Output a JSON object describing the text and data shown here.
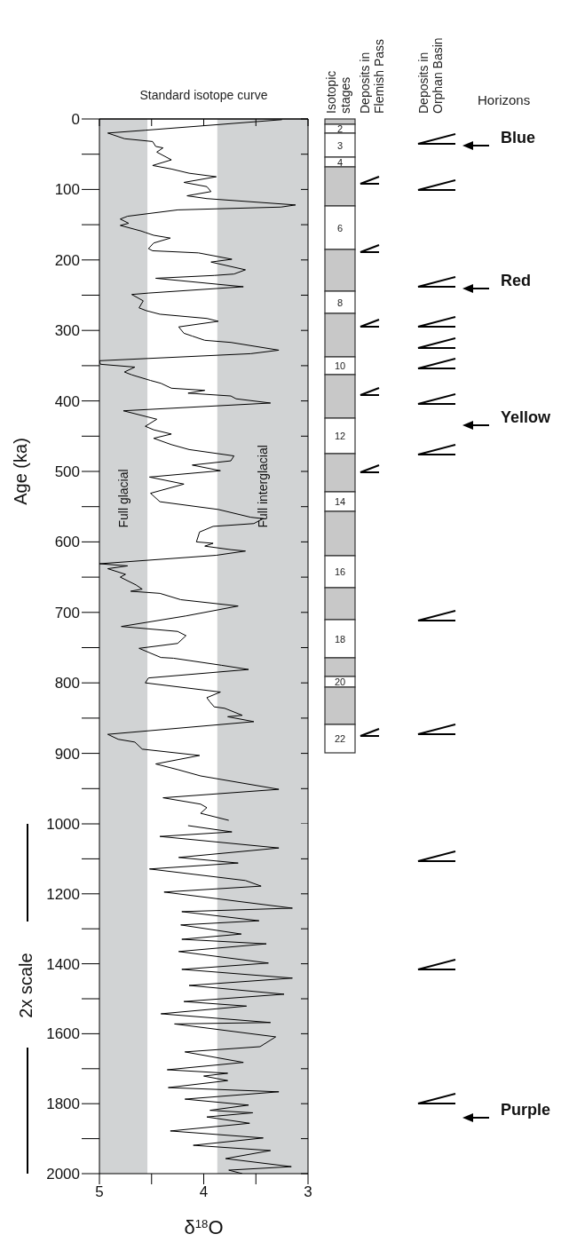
{
  "chart_data": [
    {
      "type": "line",
      "title": "Standard isotope curve",
      "ylabel": "Age (ka)",
      "xlim": [
        5,
        3
      ],
      "ylim": [
        1000,
        0
      ],
      "xticks": [
        {
          "value": 5,
          "label": null
        },
        {
          "value": 4.5,
          "label": null
        },
        {
          "value": 4,
          "label": null
        },
        {
          "value": 3.5,
          "label": null
        },
        {
          "value": 3,
          "label": null
        }
      ],
      "yticks": [
        0,
        {
          "value": 50,
          "label": null
        },
        100,
        {
          "value": 150,
          "label": null
        },
        200,
        {
          "value": 250,
          "label": null
        },
        300,
        {
          "value": 350,
          "label": null
        },
        400,
        {
          "value": 450,
          "label": null
        },
        500,
        {
          "value": 550,
          "label": null
        },
        600,
        {
          "value": 650,
          "label": null
        },
        700,
        {
          "value": 750,
          "label": null
        },
        800,
        {
          "value": 850,
          "label": null
        },
        900,
        {
          "value": 950,
          "label": null
        },
        1000
      ],
      "tick_labels": "y",
      "series": [
        {
          "type": "line",
          "color": "#000000",
          "x": [
            3.25,
            4.56,
            4.92,
            4.76,
            4.49,
            4.46,
            4.39,
            4.45,
            4.31,
            4.49,
            4.31,
            4.14,
            3.88,
            4.19,
            3.97,
            3.93,
            4.16,
            3.97,
            3.12,
            3.26,
            4.25,
            4.73,
            4.8,
            4.72,
            4.8,
            4.6,
            4.56,
            4.48,
            4.32,
            4.48,
            4.53,
            4.49,
            4.05,
            3.73,
            3.93,
            3.6,
            3.71,
            3.9,
            4.46,
            3.62,
            4.53,
            4.69,
            4.58,
            4.62,
            4.55,
            4.42,
            3.97,
            3.86,
            4.24,
            4.19,
            4.11,
            3.99,
            3.74,
            3.28,
            3.55,
            5.0,
            4.99,
            4.66,
            4.76,
            4.69,
            4.51,
            4.41,
            4.31,
            3.99,
            4.15,
            3.74,
            3.69,
            3.36,
            4.77,
            4.45,
            4.56,
            4.48,
            4.31,
            4.48,
            4.31,
            4.14,
            3.71,
            3.74,
            4.11,
            3.84,
            4.52,
            4.19,
            4.51,
            4.42,
            3.86,
            3.55,
            3.43,
            3.52,
            3.91,
            4.04,
            4.07,
            3.91,
            3.99,
            3.74,
            3.6,
            3.88,
            5.0,
            4.73,
            4.92,
            4.75,
            4.8,
            4.65,
            4.59,
            4.7,
            4.42,
            4.22,
            3.67,
            4.17,
            4.79,
            4.25,
            4.17,
            4.25,
            4.62,
            4.41,
            4.29,
            3.83,
            3.57,
            4.53,
            4.56,
            3.84,
            3.97,
            3.94,
            3.9,
            3.8,
            3.63,
            3.77,
            3.52,
            4.92,
            4.82,
            4.66,
            4.59,
            4.04,
            4.46,
            4.25,
            4.03,
            3.28,
            4.39,
            4.03,
            3.97,
            4.03,
            3.76
          ],
          "values": [
            1,
            16,
            20,
            28,
            32,
            39,
            41,
            47,
            58,
            66,
            71,
            77,
            82,
            90,
            96,
            103,
            109,
            113,
            122,
            125,
            129,
            138,
            142,
            148,
            151,
            159,
            161,
            165,
            169,
            176,
            184,
            187,
            190,
            199,
            203,
            214,
            220,
            222,
            226,
            238,
            247,
            249,
            258,
            268,
            272,
            277,
            283,
            287,
            295,
            304,
            308,
            314,
            317,
            328,
            333,
            343,
            348,
            352,
            359,
            363,
            371,
            375,
            382,
            385,
            389,
            393,
            397,
            403,
            414,
            426,
            436,
            441,
            447,
            453,
            462,
            469,
            478,
            485,
            491,
            499,
            508,
            518,
            531,
            543,
            554,
            565,
            567,
            574,
            578,
            586,
            600,
            602,
            606,
            611,
            613,
            619,
            631,
            634,
            638,
            646,
            650,
            661,
            667,
            670,
            673,
            682,
            691,
            705,
            720,
            727,
            733,
            744,
            751,
            764,
            765,
            775,
            781,
            793,
            800,
            813,
            821,
            827,
            834,
            836,
            846,
            848,
            855,
            873,
            880,
            884,
            894,
            903,
            915,
            923,
            932,
            951,
            963,
            972,
            977,
            985,
            995
          ]
        }
      ],
      "bands": [
        {
          "axis": "x",
          "from": 5,
          "to": 4.54,
          "label": "Full glacial",
          "color": "#d1d3d4"
        },
        {
          "axis": "x",
          "from": 3.87,
          "to": 3,
          "label": "Full interglacial",
          "color": "#d1d3d4"
        }
      ],
      "annotations": [
        "Isotopic stages",
        "Deposits in Flemish Pass",
        "Deposits in Orphan Basin",
        "Horizons",
        "Blue",
        "Red",
        "Yellow",
        "2",
        "3",
        "4",
        "6",
        "8",
        "10",
        "12",
        "14",
        "16",
        "18",
        "20",
        "22"
      ]
    },
    {
      "type": "line",
      "xlabel": "δ$^{18}$O",
      "xlim": [
        5,
        3
      ],
      "ylim": [
        2000,
        1000
      ],
      "xticks": [
        5,
        {
          "value": 4.5,
          "label": null
        },
        4,
        {
          "value": 3.5,
          "label": null
        },
        3
      ],
      "yticks": [
        {
          "value": 1100,
          "label": null
        },
        1200,
        {
          "value": 1300,
          "label": null
        },
        1400,
        {
          "value": 1500,
          "label": null
        },
        1600,
        {
          "value": 1700,
          "label": null
        },
        1800,
        {
          "value": 1900,
          "label": null
        },
        2000
      ],
      "series": [
        {
          "type": "line",
          "color": "#000000",
          "x": [
            4.15,
            3.73,
            4.42,
            3.28,
            4.24,
            3.67,
            4.52,
            3.6,
            3.45,
            4.38,
            3.15,
            4.21,
            3.47,
            4.22,
            3.64,
            4.21,
            3.4,
            4.24,
            3.38,
            4.21,
            3.15,
            4.14,
            3.23,
            4.19,
            3.59,
            4.41,
            3.36,
            4.28,
            3.31,
            3.46,
            4.18,
            3.62,
            4.35,
            3.77,
            4.0,
            3.77,
            4.34,
            3.28,
            4.18,
            3.57,
            3.94,
            3.53,
            3.97,
            3.56,
            4.32,
            3.43,
            4.1,
            3.36,
            3.79,
            3.16,
            3.76,
            3.63
          ],
          "values": [
            1005,
            1023,
            1036,
            1069,
            1096,
            1112,
            1129,
            1162,
            1178,
            1195,
            1241,
            1251,
            1277,
            1289,
            1315,
            1330,
            1343,
            1365,
            1398,
            1416,
            1441,
            1462,
            1487,
            1508,
            1521,
            1543,
            1568,
            1572,
            1609,
            1637,
            1652,
            1682,
            1703,
            1713,
            1721,
            1734,
            1754,
            1766,
            1787,
            1804,
            1819,
            1826,
            1838,
            1856,
            1878,
            1898,
            1919,
            1934,
            1957,
            1980,
            1990,
            2000
          ]
        }
      ],
      "bands": [
        {
          "axis": "x",
          "from": 5,
          "to": 4.54,
          "color": "#d1d3d4"
        },
        {
          "axis": "x",
          "from": 3.87,
          "to": 3,
          "color": "#d1d3d4"
        }
      ],
      "annotations": [
        "2x scale",
        "Purple"
      ]
    }
  ]
}
